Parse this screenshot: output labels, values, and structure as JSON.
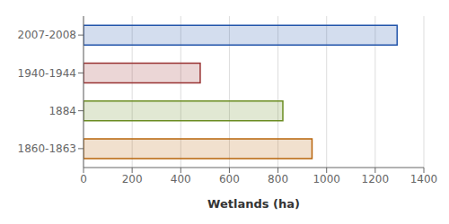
{
  "chart_data": {
    "type": "bar",
    "orientation": "horizontal",
    "categories": [
      "1860-1863",
      "1884",
      "1940-1944",
      "2007-2008"
    ],
    "values": [
      940,
      820,
      480,
      1290
    ],
    "colors": [
      "#b8640a",
      "#6b8c21",
      "#993333",
      "#2255aa"
    ],
    "xlabel": "Wetlands (ha)",
    "xlim": [
      0,
      1400
    ],
    "xticks": [
      0,
      200,
      400,
      600,
      800,
      1000,
      1200,
      1400
    ],
    "grid": true
  }
}
